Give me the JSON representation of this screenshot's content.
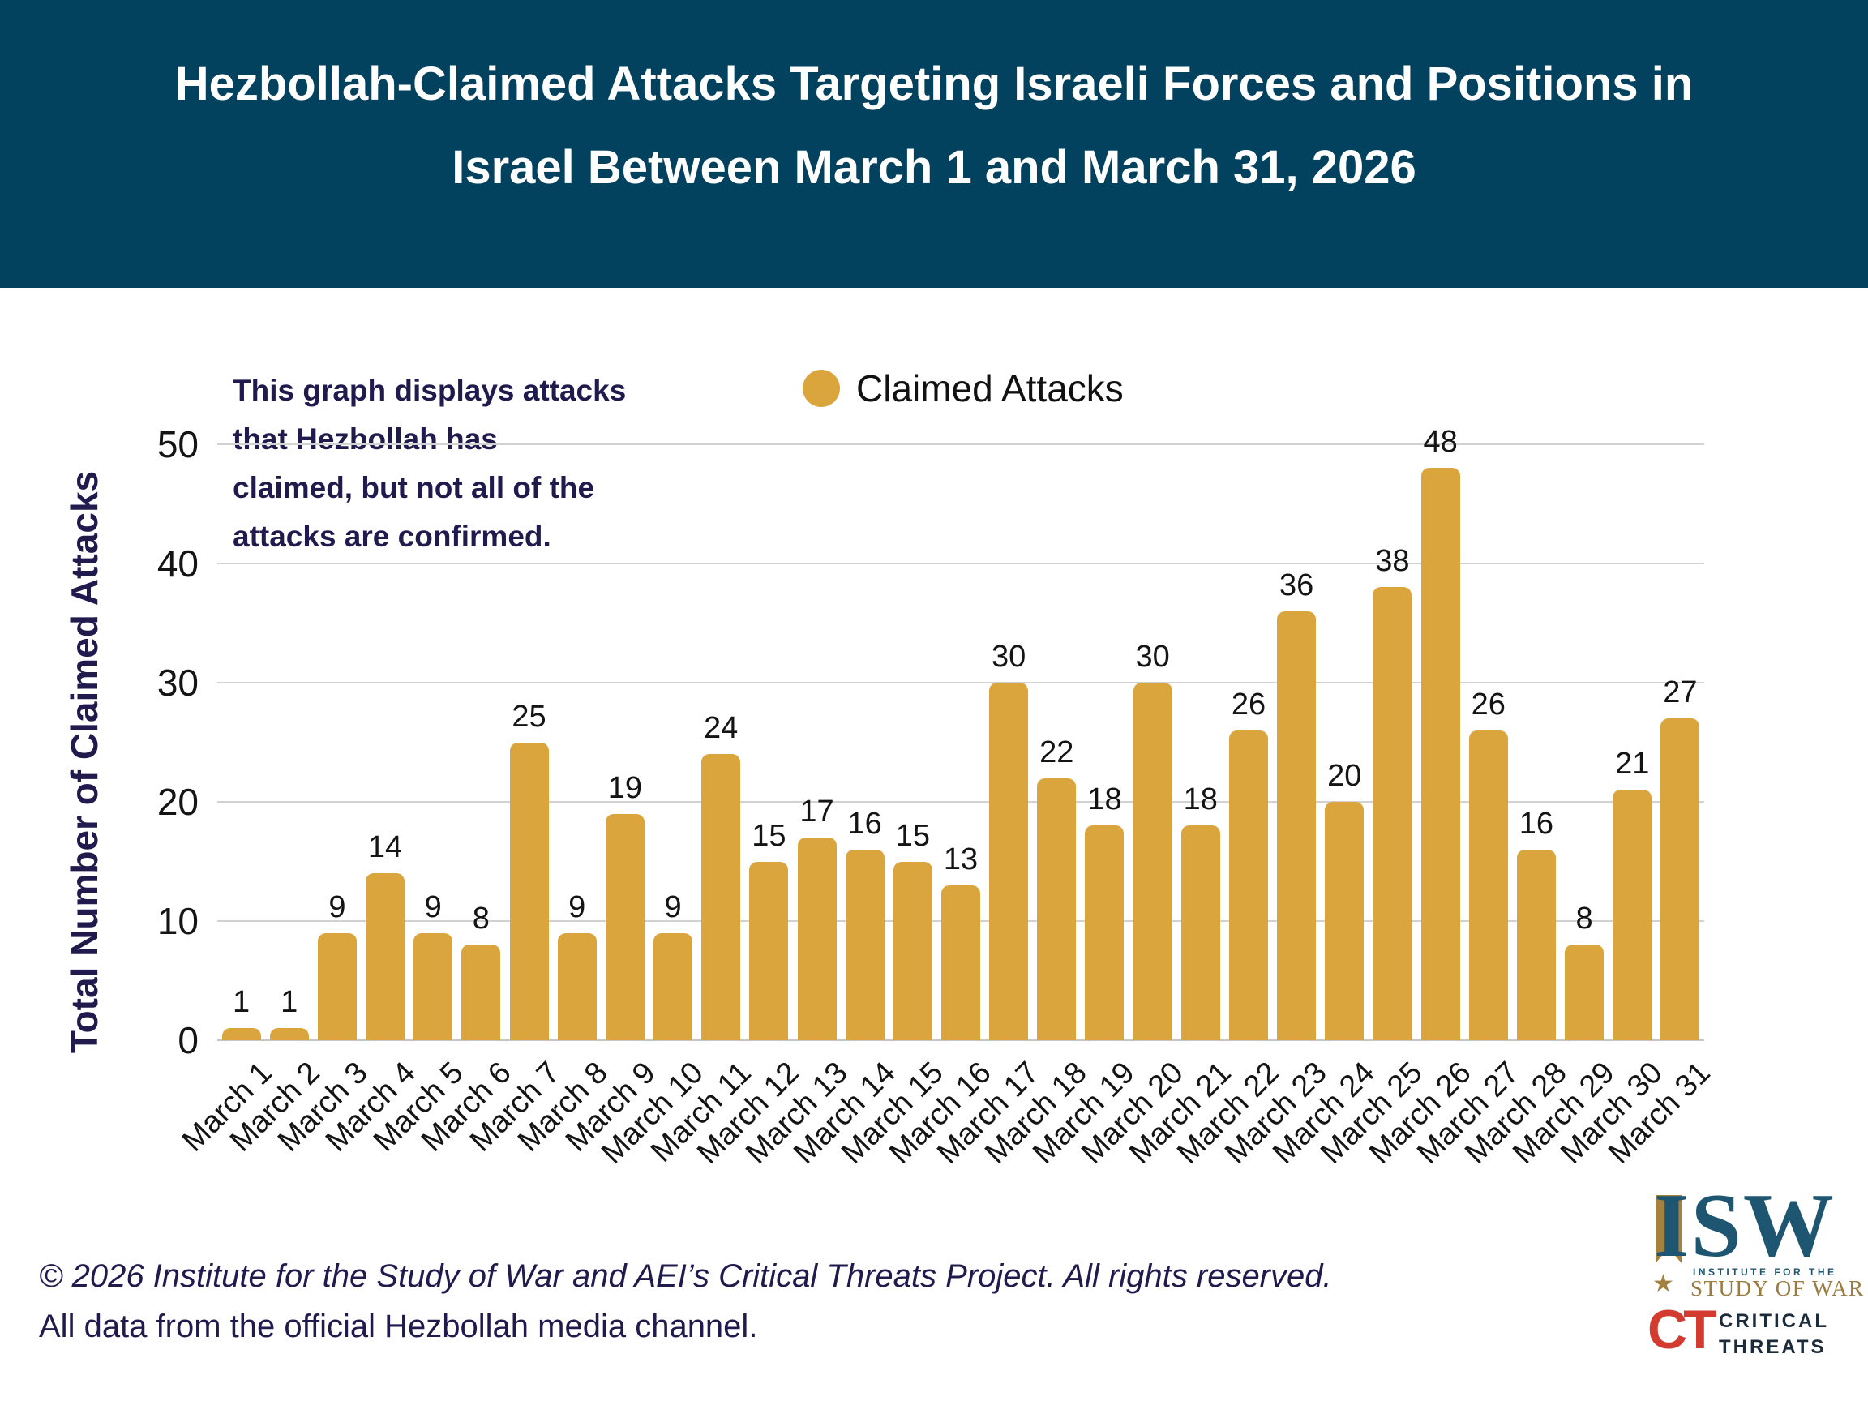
{
  "header": {
    "title_line1": "Hezbollah-Claimed Attacks Targeting Israeli Forces and Positions in",
    "title_line2": "Israel Between March 1 and March 31, 2026"
  },
  "annotation": {
    "lines": [
      "This graph displays attacks",
      "that Hezbollah has",
      "claimed, but not all of the",
      "attacks are confirmed."
    ]
  },
  "legend": {
    "label": "Claimed Attacks",
    "marker_color": "#D9A53C"
  },
  "y_axis": {
    "title": "Total Number of Claimed Attacks",
    "ticks": [
      0,
      10,
      20,
      30,
      40,
      50
    ]
  },
  "chart_data": {
    "type": "bar",
    "title": "Hezbollah-Claimed Attacks Targeting Israeli Forces and Positions in Israel Between March 1 and March 31, 2026",
    "categories": [
      "March 1",
      "March 2",
      "March 3",
      "March 4",
      "March 5",
      "March 6",
      "March 7",
      "March 8",
      "March 9",
      "March 10",
      "March 11",
      "March 12",
      "March 13",
      "March 14",
      "March 15",
      "March 16",
      "March 17",
      "March 18",
      "March 19",
      "March 20",
      "March 21",
      "March 22",
      "March 23",
      "March 24",
      "March 25",
      "March 26",
      "March 27",
      "March 28",
      "March 29",
      "March 30",
      "March 31"
    ],
    "values": [
      1,
      1,
      9,
      14,
      9,
      8,
      25,
      9,
      19,
      9,
      24,
      15,
      17,
      16,
      15,
      13,
      30,
      22,
      18,
      30,
      18,
      26,
      36,
      20,
      38,
      48,
      26,
      16,
      8,
      21,
      27
    ],
    "series_name": "Claimed Attacks",
    "xlabel": "",
    "ylabel": "Total Number of Claimed Attacks",
    "ylim": [
      0,
      50
    ],
    "grid": true,
    "legend_position": "top",
    "bar_color": "#D9A53C",
    "data_labels": true
  },
  "footer": {
    "line1": "© 2026 Institute for the Study of War and AEI’s Critical Threats Project. All rights reserved.",
    "line2": "All data from the official Hezbollah media channel."
  },
  "logos": {
    "isw": {
      "acronym": "ISW",
      "sub1": "INSTITUTE FOR THE",
      "sub2": "STUDY OF WAR"
    },
    "ct": {
      "acronym": "CT",
      "line1": "CRITICAL",
      "line2": "THREATS"
    }
  },
  "colors": {
    "header_bg": "#03425E",
    "bar": "#D9A53C",
    "navy_text": "#211B4D",
    "gridline": "#D2D2D2"
  }
}
